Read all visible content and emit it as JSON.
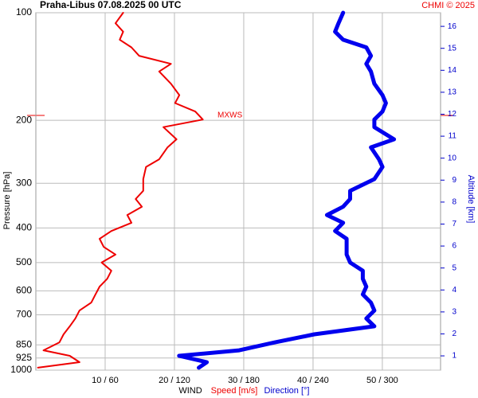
{
  "chart_data": {
    "type": "line",
    "title": "Praha-Libus    07.08.2025 00 UTC",
    "credit": "CHMI © 2025",
    "x_label_main": "WIND",
    "x_label_speed": "Speed [m/s]",
    "x_label_direction": "Direction [°]",
    "y_label": "Pressure [hPa]",
    "y2_label": "Altitude [km]",
    "annotation": "MXWS",
    "log_y": true,
    "grid": true,
    "y": [
      984,
      950,
      912,
      880,
      836,
      794,
      754,
      717,
      681,
      647,
      614,
      584,
      555,
      527,
      500,
      475,
      452,
      429,
      408,
      387,
      368,
      349,
      332,
      315,
      292,
      270,
      257,
      238,
      226,
      209,
      199,
      189,
      179,
      170,
      158,
      146,
      139,
      132,
      125,
      119,
      113,
      107,
      100
    ],
    "series": [
      {
        "name": "Speed [m/s]",
        "color": "#ee0000",
        "axis": "x",
        "values": [
          0.3,
          6.3,
          4.9,
          1.1,
          3.4,
          4.0,
          4.9,
          5.7,
          6.3,
          8.0,
          8.6,
          9.2,
          10.3,
          10.9,
          9.5,
          11.5,
          9.8,
          9.2,
          10.9,
          13.8,
          13.2,
          15.3,
          14.4,
          15.5,
          15.5,
          15.9,
          17.8,
          19.0,
          20.3,
          18.4,
          24.1,
          23.0,
          20.1,
          20.7,
          19.5,
          17.8,
          19.5,
          14.9,
          13.8,
          12.1,
          12.6,
          11.5,
          12.6
        ]
      },
      {
        "name": "Direction [°]",
        "color": "#0000ee",
        "axis": "x2",
        "values": [
          141,
          148,
          124,
          176,
          207,
          241,
          293,
          286,
          293,
          290,
          283,
          286,
          283,
          283,
          272,
          269,
          269,
          269,
          259,
          266,
          252,
          266,
          272,
          272,
          293,
          300,
          297,
          290,
          310,
          293,
          293,
          300,
          303,
          300,
          293,
          290,
          286,
          290,
          286,
          266,
          259,
          262,
          266
        ]
      }
    ],
    "xlim": [
      0,
      58.4
    ],
    "x2lim": [
      0,
      350.3
    ],
    "xticks": [
      {
        "value": 10,
        "label": "10 / 60"
      },
      {
        "value": 20,
        "label": "20 / 120"
      },
      {
        "value": 30,
        "label": "30 / 180"
      },
      {
        "value": 40,
        "label": "40 / 240"
      },
      {
        "value": 50,
        "label": "50 / 300"
      }
    ],
    "ylim": [
      1000,
      100
    ],
    "yticks": [
      100,
      200,
      300,
      400,
      500,
      600,
      700,
      850,
      925,
      1000
    ],
    "y2lim": [
      0.35,
      16.62
    ],
    "y2ticks": [
      1,
      2,
      3,
      4,
      5,
      6,
      7,
      8,
      9,
      10,
      11,
      12,
      13,
      14,
      15,
      16
    ]
  }
}
